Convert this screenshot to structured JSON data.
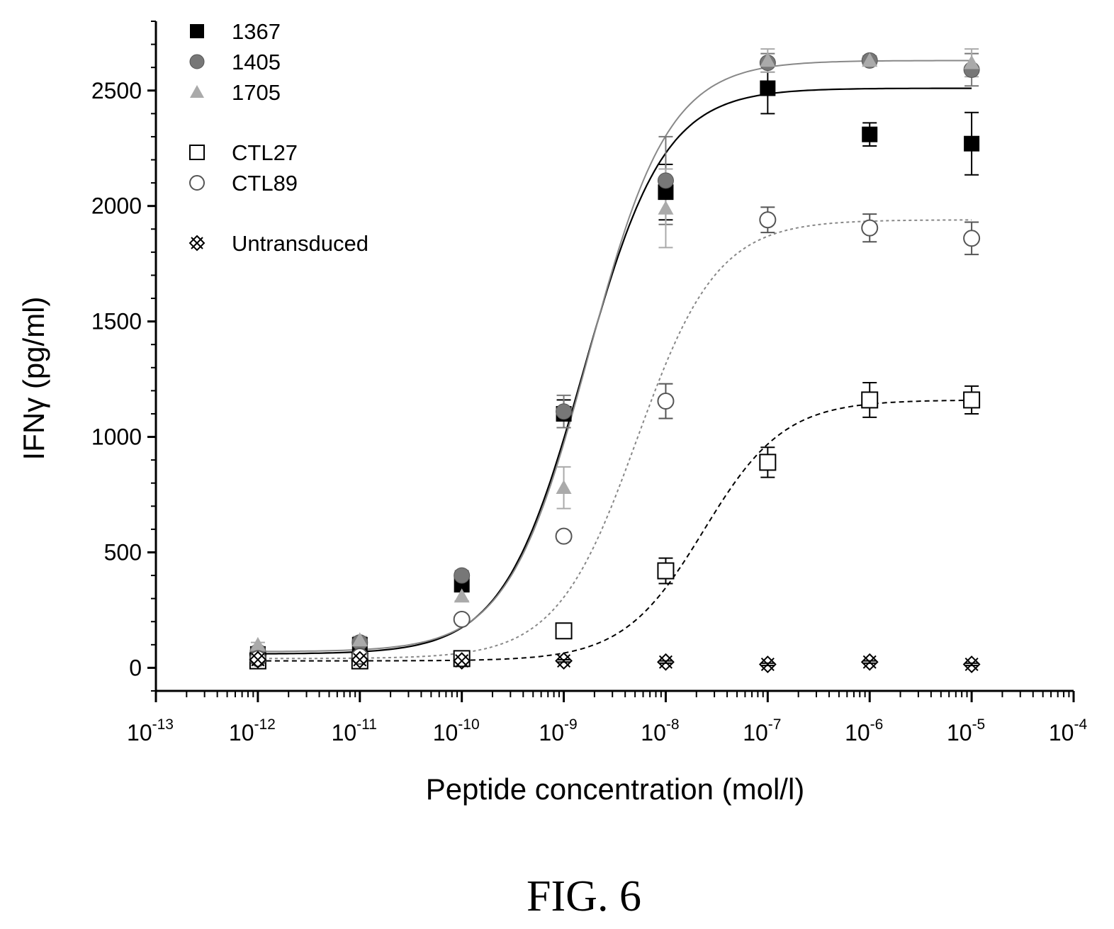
{
  "chart_data": {
    "type": "scatter",
    "xlabel": "Peptide concentration (mol/l)",
    "ylabel": "IFNγ (pg/ml)",
    "x_scale": "log",
    "xlim": [
      1e-13,
      0.0001
    ],
    "ylim": [
      -100,
      2800
    ],
    "y_ticks": [
      0,
      500,
      1000,
      1500,
      2000,
      2500
    ],
    "x_ticks": [
      {
        "base": "10",
        "exp": "-13",
        "value": 1e-13
      },
      {
        "base": "10",
        "exp": "-12",
        "value": 1e-12
      },
      {
        "base": "10",
        "exp": "-11",
        "value": 1e-11
      },
      {
        "base": "10",
        "exp": "-10",
        "value": 1e-10
      },
      {
        "base": "10",
        "exp": "-9",
        "value": 1e-09
      },
      {
        "base": "10",
        "exp": "-8",
        "value": 1e-08
      },
      {
        "base": "10",
        "exp": "-7",
        "value": 1e-07
      },
      {
        "base": "10",
        "exp": "-6",
        "value": 1e-06
      },
      {
        "base": "10",
        "exp": "-5",
        "value": 1e-05
      },
      {
        "base": "10",
        "exp": "-4",
        "value": 0.0001
      }
    ],
    "grid": false,
    "legend_position": "top-left",
    "x": [
      1e-12,
      1e-11,
      1e-10,
      1e-09,
      1e-08,
      1e-07,
      1e-06,
      1e-05
    ],
    "series": [
      {
        "name": "1367",
        "marker": "filled-square",
        "color": "#000000",
        "fit_line": "solid",
        "values": [
          60,
          100,
          360,
          1100,
          2060,
          2510,
          2310,
          2270
        ],
        "errors": [
          15,
          15,
          20,
          60,
          120,
          110,
          50,
          135
        ]
      },
      {
        "name": "1405",
        "marker": "filled-circle",
        "color": "#777777",
        "fit_line": "solid-grey",
        "values": [
          70,
          110,
          400,
          1110,
          2110,
          2620,
          2630,
          2590
        ],
        "errors": [
          15,
          15,
          20,
          70,
          190,
          40,
          20,
          70
        ]
      },
      {
        "name": "1705",
        "marker": "filled-triangle",
        "color": "#aaaaaa",
        "fit_line": "none",
        "values": [
          100,
          120,
          310,
          780,
          1990,
          2630,
          2630,
          2620
        ],
        "errors": [
          10,
          15,
          20,
          90,
          170,
          50,
          20,
          60
        ]
      },
      {
        "name": "CTL27",
        "marker": "open-square",
        "color": "#000000",
        "fit_line": "dashed",
        "values": [
          30,
          30,
          40,
          160,
          420,
          890,
          1160,
          1160
        ],
        "errors": [
          10,
          10,
          10,
          15,
          55,
          65,
          75,
          60
        ]
      },
      {
        "name": "CTL89",
        "marker": "open-circle",
        "color": "#555555",
        "fit_line": "dotted-grey",
        "values": [
          40,
          50,
          210,
          570,
          1155,
          1940,
          1905,
          1860
        ],
        "errors": [
          10,
          10,
          15,
          20,
          75,
          55,
          60,
          70
        ]
      },
      {
        "name": "Untransduced",
        "marker": "crossed-diamond",
        "color": "#000000",
        "fit_line": "none",
        "values": [
          35,
          35,
          30,
          30,
          25,
          15,
          25,
          15
        ],
        "errors": [
          5,
          5,
          5,
          5,
          5,
          5,
          5,
          5
        ]
      }
    ]
  },
  "caption": "FIG. 6"
}
